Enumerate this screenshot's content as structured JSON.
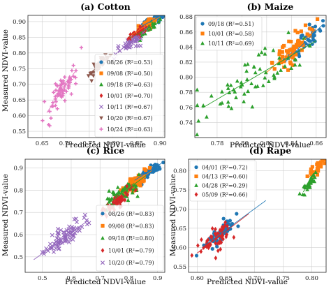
{
  "chart_data": [
    {
      "type": "scatter",
      "title": "(a) Cotton",
      "xlabel": "Predicted NDVI-value",
      "ylabel": "Measured NDVI-value",
      "xlim": [
        0.62,
        0.91
      ],
      "ylim": [
        0.53,
        0.92
      ],
      "xticks": [
        0.65,
        0.7,
        0.75,
        0.8,
        0.85,
        0.9
      ],
      "yticks": [
        0.55,
        0.6,
        0.65,
        0.7,
        0.75,
        0.8,
        0.85,
        0.9
      ],
      "xtick_labels": [
        "0.65",
        "0.70",
        "0.75",
        "0.80",
        "0.85",
        "0.90"
      ],
      "ytick_labels": [
        "0.55",
        "0.60",
        "0.65",
        "0.70",
        "0.75",
        "0.80",
        "0.85",
        "0.90"
      ],
      "grid": true,
      "legend_position": "bottom-right",
      "series": [
        {
          "name": "08/26 (R²=0.53)",
          "color": "#1f77b4",
          "marker": "circle",
          "cx": 0.885,
          "cy": 0.905,
          "sx": 0.012,
          "sy": 0.012,
          "n": 40,
          "trend": [
            0.86,
            0.91
          ]
        },
        {
          "name": "09/08 (R²=0.50)",
          "color": "#ff7f0e",
          "marker": "square",
          "cx": 0.868,
          "cy": 0.885,
          "sx": 0.012,
          "sy": 0.014,
          "n": 35,
          "trend": [
            0.84,
            0.9
          ]
        },
        {
          "name": "09/18 (R²=0.63)",
          "color": "#2ca02c",
          "marker": "triangle",
          "cx": 0.87,
          "cy": 0.875,
          "sx": 0.014,
          "sy": 0.014,
          "n": 35,
          "trend": [
            0.84,
            0.9
          ]
        },
        {
          "name": "10/01 (R²=0.70)",
          "color": "#d62728",
          "marker": "diamond",
          "cx": 0.85,
          "cy": 0.86,
          "sx": 0.01,
          "sy": 0.012,
          "n": 35,
          "trend": [
            0.83,
            0.88
          ]
        },
        {
          "name": "10/11 (R²=0.67)",
          "color": "#9467bd",
          "marker": "x",
          "cx": 0.835,
          "cy": 0.83,
          "sx": 0.015,
          "sy": 0.02,
          "n": 40,
          "trend": [
            0.81,
            0.86
          ]
        },
        {
          "name": "10/20 (R²=0.67)",
          "color": "#8c564b",
          "marker": "triangle-down",
          "cx": 0.77,
          "cy": 0.76,
          "sx": 0.012,
          "sy": 0.02,
          "n": 40,
          "trend": [
            0.75,
            0.79
          ]
        },
        {
          "name": "10/24 (R²=0.63)",
          "color": "#e377c2",
          "marker": "plus",
          "cx": 0.69,
          "cy": 0.675,
          "sx": 0.015,
          "sy": 0.04,
          "n": 70,
          "trend": [
            0.66,
            0.72
          ]
        }
      ]
    },
    {
      "type": "scatter",
      "title": "(b) Maize",
      "xlabel": "Predicted NDVI-value",
      "ylabel": "",
      "xlim": [
        0.762,
        0.868
      ],
      "ylim": [
        0.72,
        0.882
      ],
      "xticks": [
        0.76,
        0.78,
        0.8,
        0.82,
        0.84,
        0.86
      ],
      "yticks": [
        0.74,
        0.76,
        0.78,
        0.8,
        0.82,
        0.84,
        0.86,
        0.88
      ],
      "xtick_labels": [
        "0.76",
        "0.78",
        "0.80",
        "0.82",
        "0.84",
        "0.86"
      ],
      "ytick_labels": [
        "0.74",
        "0.76",
        "0.78",
        "0.80",
        "0.82",
        "0.84",
        "0.86",
        "0.88"
      ],
      "grid": true,
      "legend_position": "top-left",
      "series": [
        {
          "name": "09/18 (R²=0.51)",
          "color": "#1f77b4",
          "marker": "circle",
          "cx": 0.852,
          "cy": 0.848,
          "sx": 0.008,
          "sy": 0.016,
          "n": 45,
          "trend": [
            0.835,
            0.865
          ]
        },
        {
          "name": "10/01 (R²=0.58)",
          "color": "#ff7f0e",
          "marker": "square",
          "cx": 0.84,
          "cy": 0.835,
          "sx": 0.008,
          "sy": 0.014,
          "n": 55,
          "trend": [
            0.82,
            0.86
          ]
        },
        {
          "name": "10/11 (R²=0.69)",
          "color": "#2ca02c",
          "marker": "triangle",
          "cx": 0.805,
          "cy": 0.795,
          "sx": 0.022,
          "sy": 0.026,
          "n": 65,
          "trend": [
            0.768,
            0.86
          ]
        }
      ]
    },
    {
      "type": "scatter",
      "title": "(c) Rice",
      "xlabel": "Predicted NDVI-value",
      "ylabel": "Measured NDVI-value",
      "xlim": [
        0.44,
        0.925
      ],
      "ylim": [
        0.43,
        0.94
      ],
      "xticks": [
        0.5,
        0.6,
        0.7,
        0.8,
        0.9
      ],
      "yticks": [
        0.5,
        0.6,
        0.7,
        0.8,
        0.9
      ],
      "xtick_labels": [
        "0.5",
        "0.6",
        "0.7",
        "0.8",
        "0.9"
      ],
      "ytick_labels": [
        "0.5",
        "0.6",
        "0.7",
        "0.8",
        "0.9"
      ],
      "grid": true,
      "legend_position": "bottom-right",
      "series": [
        {
          "name": "08/26 (R²=0.83)",
          "color": "#1f77b4",
          "marker": "circle",
          "cx": 0.875,
          "cy": 0.89,
          "sx": 0.02,
          "sy": 0.02,
          "n": 55,
          "trend": [
            0.82,
            0.92
          ]
        },
        {
          "name": "09/08 (R²=0.83)",
          "color": "#ff7f0e",
          "marker": "square",
          "cx": 0.82,
          "cy": 0.83,
          "sx": 0.025,
          "sy": 0.03,
          "n": 60,
          "trend": [
            0.76,
            0.88
          ]
        },
        {
          "name": "09/18 (R²=0.80)",
          "color": "#2ca02c",
          "marker": "triangle",
          "cx": 0.78,
          "cy": 0.79,
          "sx": 0.03,
          "sy": 0.035,
          "n": 60,
          "trend": [
            0.72,
            0.86
          ]
        },
        {
          "name": "10/01 (R²=0.79)",
          "color": "#d62728",
          "marker": "diamond",
          "cx": 0.75,
          "cy": 0.74,
          "sx": 0.025,
          "sy": 0.03,
          "n": 50,
          "trend": [
            0.7,
            0.8
          ]
        },
        {
          "name": "10/20 (R²=0.79)",
          "color": "#9467bd",
          "marker": "x",
          "cx": 0.58,
          "cy": 0.59,
          "sx": 0.035,
          "sy": 0.04,
          "n": 80,
          "trend": [
            0.47,
            0.66
          ]
        }
      ]
    },
    {
      "type": "scatter",
      "title": "(d) Rape",
      "xlabel": "Predicted NDVI-value",
      "ylabel": "Measured NDVI-value",
      "xlim": [
        0.585,
        0.825
      ],
      "ylim": [
        0.535,
        0.83
      ],
      "xticks": [
        0.6,
        0.65,
        0.7,
        0.75,
        0.8
      ],
      "yticks": [
        0.55,
        0.6,
        0.65,
        0.7,
        0.75,
        0.8
      ],
      "xtick_labels": [
        "0.60",
        "0.65",
        "0.70",
        "0.75",
        "0.80"
      ],
      "ytick_labels": [
        "0.55",
        "0.60",
        "0.65",
        "0.70",
        "0.75",
        "0.80"
      ],
      "grid": true,
      "legend_position": "top-left",
      "series": [
        {
          "name": "04/01 (R²=0.72)",
          "color": "#1f77b4",
          "marker": "circle",
          "cx": 0.64,
          "cy": 0.635,
          "sx": 0.015,
          "sy": 0.02,
          "n": 60,
          "trend": [
            0.61,
            0.72
          ]
        },
        {
          "name": "04/13 (R²=0.60)",
          "color": "#ff7f0e",
          "marker": "square",
          "cx": 0.808,
          "cy": 0.805,
          "sx": 0.006,
          "sy": 0.012,
          "n": 30,
          "trend": [
            0.795,
            0.82
          ]
        },
        {
          "name": "04/28 (R²=0.29)",
          "color": "#2ca02c",
          "marker": "triangle",
          "cx": 0.795,
          "cy": 0.765,
          "sx": 0.006,
          "sy": 0.015,
          "n": 35,
          "trend": [
            0.785,
            0.805
          ]
        },
        {
          "name": "05/09 (R²=0.66)",
          "color": "#d62728",
          "marker": "diamond",
          "cx": 0.635,
          "cy": 0.625,
          "sx": 0.018,
          "sy": 0.025,
          "n": 55,
          "trend": [
            0.6,
            0.69
          ]
        }
      ]
    }
  ]
}
